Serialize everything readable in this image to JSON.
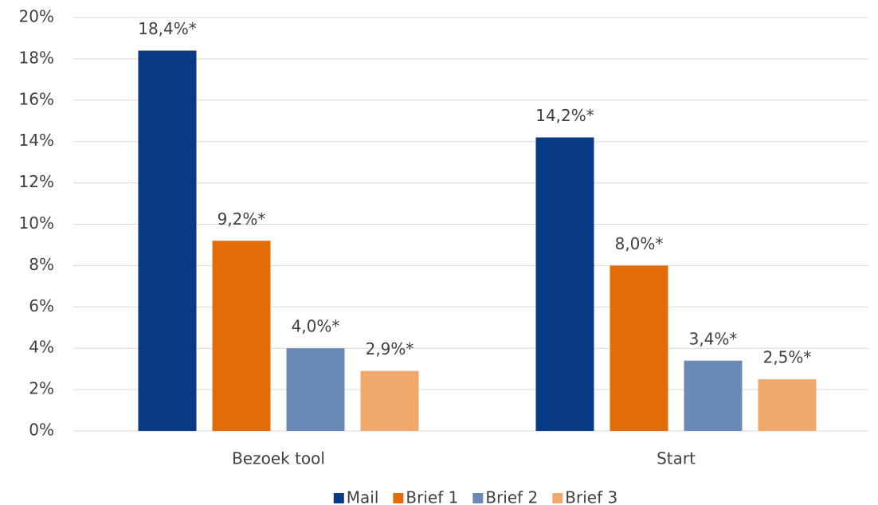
{
  "chart_data": {
    "type": "bar",
    "categories": [
      "Bezoek tool",
      "Start"
    ],
    "series": [
      {
        "name": "Mail",
        "color": "#083a85",
        "values": [
          18.4,
          14.2
        ],
        "value_labels": [
          "18,4%*",
          "14,2%*"
        ]
      },
      {
        "name": "Brief 1",
        "color": "#e36c0a",
        "values": [
          9.2,
          8.0
        ],
        "value_labels": [
          "9,2%*",
          "8,0%*"
        ]
      },
      {
        "name": "Brief 2",
        "color": "#6a89b5",
        "values": [
          4.0,
          3.4
        ],
        "value_labels": [
          "4,0%*",
          "3,4%*"
        ]
      },
      {
        "name": "Brief 3",
        "color": "#f0a86d",
        "values": [
          2.9,
          2.5
        ],
        "value_labels": [
          "2,9%*",
          "2,5%*"
        ]
      }
    ],
    "ylim": [
      0,
      20
    ],
    "yticks": [
      {
        "value": 0,
        "label": "0%"
      },
      {
        "value": 2,
        "label": "2%"
      },
      {
        "value": 4,
        "label": "4%"
      },
      {
        "value": 6,
        "label": "6%"
      },
      {
        "value": 8,
        "label": "8%"
      },
      {
        "value": 10,
        "label": "10%"
      },
      {
        "value": 12,
        "label": "12%"
      },
      {
        "value": 14,
        "label": "14%"
      },
      {
        "value": 16,
        "label": "16%"
      },
      {
        "value": 18,
        "label": "18%"
      },
      {
        "value": 20,
        "label": "20%"
      }
    ],
    "grid": true,
    "legend": "bottom"
  }
}
